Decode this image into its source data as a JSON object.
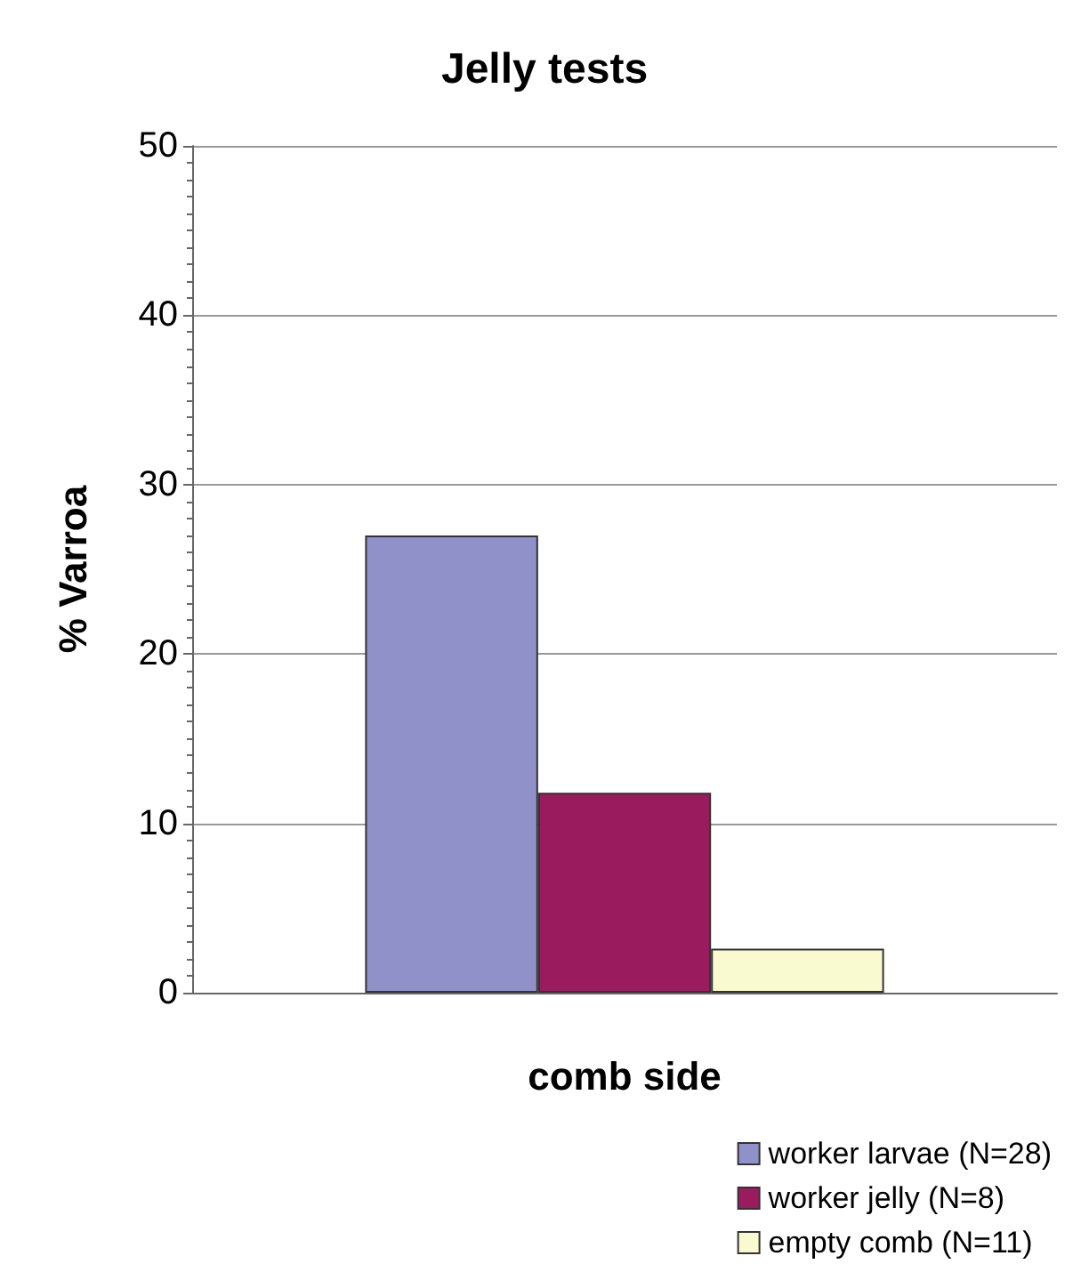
{
  "chart_data": {
    "type": "bar",
    "title": "Jelly tests",
    "xlabel": "comb side",
    "ylabel": "% Varroa",
    "categories": [
      null
    ],
    "series": [
      {
        "name": "worker larvae (N=28)",
        "color": "#9191c9",
        "values": [
          27
        ]
      },
      {
        "name": "worker jelly (N=8)",
        "color": "#9b1c5e",
        "values": [
          11.8
        ]
      },
      {
        "name": "empty comb (N=11)",
        "color": "#fafad0",
        "values": [
          2.6
        ]
      }
    ],
    "ylim": [
      0,
      50
    ],
    "yticks": [
      0,
      10,
      20,
      30,
      40,
      50
    ],
    "grid": "y",
    "legend": "bottom right"
  }
}
